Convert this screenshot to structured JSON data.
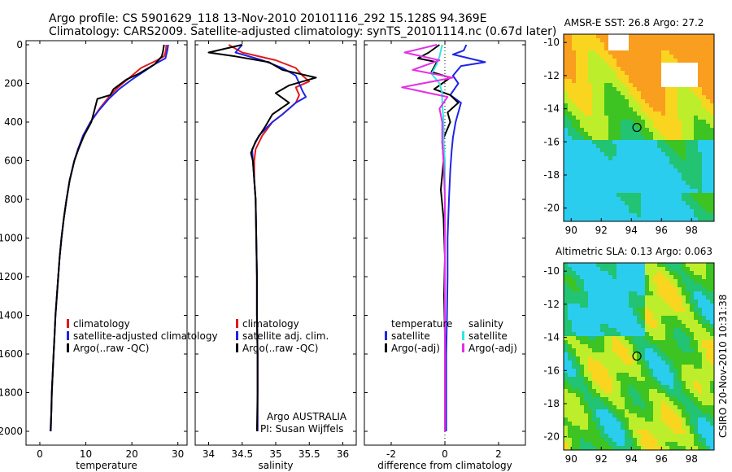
{
  "title_line1": "Argo profile: CS 5901629_118 13-Nov-2010 20101116_292 15.128S 94.369E",
  "title_line2": "Climatology: CARS2009. Satellite-adjusted climatology: synTS_20101114.nc (0.67d later)",
  "footer_text": "CSIRO 20-Nov-2010 10:31:38",
  "colors": {
    "climatology": "#e41a1c",
    "satellite": "#1f24e6",
    "argo": "#000000",
    "cyan": "#2ee6e6",
    "magenta": "#e62ee6"
  },
  "chart_data": [
    {
      "type": "line",
      "xlabel": "temperature",
      "ylabel": "",
      "xlim": [
        -3,
        32
      ],
      "ylim": [
        2050,
        0
      ],
      "xticks": [
        0,
        10,
        20,
        30
      ],
      "yticks": [
        0,
        200,
        400,
        600,
        800,
        1000,
        1200,
        1400,
        1600,
        1800,
        2000
      ],
      "legend": [
        "climatology",
        "satellite-adjusted climatology",
        "Argo(..raw -QC)"
      ],
      "series": [
        {
          "name": "climatology",
          "color": "climatology",
          "points": [
            [
              27.5,
              0
            ],
            [
              27.4,
              30
            ],
            [
              27.0,
              60
            ],
            [
              25.5,
              80
            ],
            [
              22.0,
              120
            ],
            [
              19.5,
              170
            ],
            [
              17.0,
              220
            ],
            [
              15.0,
              270
            ],
            [
              13.0,
              330
            ],
            [
              11.0,
              400
            ],
            [
              9.5,
              470
            ],
            [
              8.3,
              540
            ],
            [
              7.5,
              600
            ],
            [
              6.5,
              700
            ],
            [
              5.8,
              800
            ],
            [
              5.2,
              900
            ],
            [
              4.7,
              1000
            ],
            [
              4.3,
              1100
            ],
            [
              4.0,
              1200
            ],
            [
              3.7,
              1300
            ],
            [
              3.4,
              1400
            ],
            [
              3.2,
              1500
            ],
            [
              3.0,
              1600
            ],
            [
              2.8,
              1700
            ],
            [
              2.6,
              1800
            ],
            [
              2.5,
              1900
            ],
            [
              2.4,
              2000
            ]
          ]
        },
        {
          "name": "satellite-adjusted climatology",
          "color": "satellite",
          "points": [
            [
              27.9,
              0
            ],
            [
              27.7,
              30
            ],
            [
              27.3,
              70
            ],
            [
              25.0,
              100
            ],
            [
              22.5,
              140
            ],
            [
              20.0,
              180
            ],
            [
              17.2,
              230
            ],
            [
              15.0,
              280
            ],
            [
              12.8,
              340
            ],
            [
              11.0,
              400
            ],
            [
              9.4,
              470
            ],
            [
              8.3,
              540
            ],
            [
              7.5,
              600
            ],
            [
              6.5,
              700
            ],
            [
              5.8,
              800
            ],
            [
              5.2,
              900
            ],
            [
              4.7,
              1000
            ],
            [
              4.3,
              1100
            ],
            [
              4.0,
              1200
            ],
            [
              3.7,
              1300
            ],
            [
              3.4,
              1400
            ],
            [
              3.2,
              1500
            ],
            [
              3.0,
              1600
            ],
            [
              2.8,
              1700
            ],
            [
              2.6,
              1800
            ],
            [
              2.5,
              1900
            ],
            [
              2.4,
              2000
            ]
          ]
        },
        {
          "name": "Argo(..raw -QC)",
          "color": "argo",
          "points": [
            [
              27.0,
              0
            ],
            [
              26.8,
              30
            ],
            [
              26.5,
              60
            ],
            [
              25.0,
              100
            ],
            [
              21.5,
              150
            ],
            [
              18.8,
              180
            ],
            [
              16.0,
              230
            ],
            [
              15.3,
              260
            ],
            [
              12.5,
              280
            ],
            [
              11.2,
              400
            ],
            [
              9.6,
              470
            ],
            [
              8.4,
              540
            ],
            [
              7.5,
              600
            ],
            [
              6.5,
              700
            ],
            [
              5.8,
              800
            ],
            [
              5.2,
              900
            ],
            [
              4.7,
              1000
            ],
            [
              4.3,
              1100
            ],
            [
              4.0,
              1200
            ],
            [
              3.7,
              1300
            ],
            [
              3.4,
              1400
            ],
            [
              3.2,
              1500
            ],
            [
              3.0,
              1600
            ],
            [
              2.8,
              1700
            ],
            [
              2.6,
              1800
            ],
            [
              2.5,
              1900
            ],
            [
              2.3,
              2000
            ]
          ]
        }
      ]
    },
    {
      "type": "line",
      "xlabel": "salinity",
      "ylabel": "",
      "xlim": [
        33.8,
        36.2
      ],
      "ylim": [
        2050,
        0
      ],
      "xticks": [
        34,
        34.5,
        35,
        35.5,
        36
      ],
      "yticks": [],
      "legend": [
        "climatology",
        "satellite adj. clim.",
        "Argo(..raw -QC)"
      ],
      "notes": [
        "Argo AUSTRALIA",
        "PI: Susan Wijffels"
      ],
      "series": [
        {
          "name": "climatology",
          "color": "climatology",
          "points": [
            [
              34.3,
              0
            ],
            [
              34.5,
              40
            ],
            [
              35.0,
              80
            ],
            [
              35.3,
              120
            ],
            [
              35.4,
              160
            ],
            [
              35.5,
              190
            ],
            [
              35.3,
              220
            ],
            [
              35.35,
              260
            ],
            [
              35.3,
              300
            ],
            [
              35.1,
              360
            ],
            [
              34.95,
              400
            ],
            [
              34.8,
              470
            ],
            [
              34.7,
              540
            ],
            [
              34.68,
              600
            ],
            [
              34.68,
              700
            ],
            [
              34.7,
              800
            ],
            [
              34.71,
              1000
            ],
            [
              34.72,
              1200
            ],
            [
              34.72,
              1400
            ],
            [
              34.73,
              1600
            ],
            [
              34.73,
              1800
            ],
            [
              34.73,
              2000
            ]
          ]
        },
        {
          "name": "satellite adj. clim.",
          "color": "satellite",
          "points": [
            [
              34.5,
              0
            ],
            [
              34.4,
              40
            ],
            [
              34.8,
              80
            ],
            [
              35.1,
              120
            ],
            [
              35.3,
              160
            ],
            [
              35.35,
              200
            ],
            [
              35.4,
              240
            ],
            [
              35.45,
              270
            ],
            [
              35.3,
              300
            ],
            [
              35.1,
              360
            ],
            [
              34.95,
              400
            ],
            [
              34.75,
              470
            ],
            [
              34.65,
              540
            ],
            [
              34.66,
              600
            ],
            [
              34.68,
              700
            ],
            [
              34.7,
              800
            ],
            [
              34.71,
              1000
            ],
            [
              34.72,
              1200
            ],
            [
              34.72,
              1400
            ],
            [
              34.73,
              1600
            ],
            [
              34.73,
              1800
            ],
            [
              34.73,
              2000
            ]
          ]
        },
        {
          "name": "Argo(..raw -QC)",
          "color": "argo",
          "points": [
            [
              34.5,
              0
            ],
            [
              34.0,
              40
            ],
            [
              34.4,
              60
            ],
            [
              34.9,
              90
            ],
            [
              35.1,
              130
            ],
            [
              35.6,
              170
            ],
            [
              35.2,
              210
            ],
            [
              35.0,
              250
            ],
            [
              35.2,
              300
            ],
            [
              34.95,
              360
            ],
            [
              34.85,
              420
            ],
            [
              34.7,
              500
            ],
            [
              34.63,
              560
            ],
            [
              34.66,
              600
            ],
            [
              34.68,
              700
            ],
            [
              34.7,
              800
            ],
            [
              34.71,
              1000
            ],
            [
              34.72,
              1200
            ],
            [
              34.72,
              1400
            ],
            [
              34.73,
              1600
            ],
            [
              34.73,
              1800
            ],
            [
              34.72,
              2000
            ]
          ]
        }
      ]
    },
    {
      "type": "line",
      "xlabel": "difference from climatology",
      "ylabel": "",
      "xlim": [
        -3,
        3
      ],
      "ylim": [
        2050,
        0
      ],
      "xticks": [
        -2,
        0,
        2
      ],
      "yticks": [],
      "legend_left_header": "temperature",
      "legend_left": [
        "satellite",
        "Argo(-adj)"
      ],
      "legend_right_header": "salinity",
      "legend_right": [
        "satellite",
        "Argo(-adj)"
      ],
      "series": [
        {
          "name": "temperature satellite",
          "color": "satellite",
          "points": [
            [
              0.8,
              0
            ],
            [
              0.7,
              30
            ],
            [
              0.3,
              50
            ],
            [
              1.5,
              90
            ],
            [
              0.6,
              110
            ],
            [
              0.3,
              160
            ],
            [
              0.5,
              200
            ],
            [
              0.2,
              260
            ],
            [
              0.6,
              300
            ],
            [
              0.5,
              350
            ],
            [
              0.4,
              400
            ],
            [
              0.3,
              480
            ],
            [
              0.25,
              550
            ],
            [
              0.2,
              650
            ],
            [
              0.15,
              800
            ],
            [
              0.1,
              1000
            ],
            [
              0.1,
              1200
            ],
            [
              0.08,
              1400
            ],
            [
              0.05,
              1600
            ],
            [
              0.05,
              1800
            ],
            [
              0.05,
              2000
            ]
          ]
        },
        {
          "name": "temperature Argo(-adj)",
          "color": "argo",
          "points": [
            [
              -0.2,
              0
            ],
            [
              -0.6,
              40
            ],
            [
              -1.0,
              70
            ],
            [
              -0.3,
              90
            ],
            [
              -0.5,
              140
            ],
            [
              0.2,
              170
            ],
            [
              -0.4,
              230
            ],
            [
              0.2,
              260
            ],
            [
              0.5,
              300
            ],
            [
              0.1,
              350
            ],
            [
              0.2,
              400
            ],
            [
              -0.1,
              500
            ],
            [
              -0.05,
              600
            ],
            [
              -0.15,
              750
            ],
            [
              -0.05,
              900
            ],
            [
              0.0,
              1100
            ],
            [
              -0.03,
              1300
            ],
            [
              0.0,
              1500
            ],
            [
              0.0,
              1700
            ],
            [
              0.0,
              1900
            ],
            [
              0.0,
              2000
            ]
          ]
        },
        {
          "name": "salinity satellite",
          "color": "cyan",
          "points": [
            [
              -0.1,
              0
            ],
            [
              -0.2,
              60
            ],
            [
              -0.3,
              100
            ],
            [
              -0.5,
              150
            ],
            [
              -0.2,
              200
            ],
            [
              -0.1,
              250
            ],
            [
              -0.1,
              300
            ],
            [
              -0.05,
              400
            ],
            [
              -0.05,
              500
            ],
            [
              0.0,
              600
            ],
            [
              0.0,
              800
            ],
            [
              0.0,
              1000
            ],
            [
              0.0,
              1200
            ],
            [
              0.0,
              1400
            ],
            [
              0.0,
              1600
            ],
            [
              0.0,
              1800
            ],
            [
              0.0,
              2000
            ]
          ]
        },
        {
          "name": "salinity Argo(-adj)",
          "color": "magenta",
          "points": [
            [
              -0.3,
              0
            ],
            [
              -1.5,
              40
            ],
            [
              -0.2,
              80
            ],
            [
              -1.2,
              130
            ],
            [
              0.3,
              170
            ],
            [
              -1.6,
              220
            ],
            [
              0.1,
              270
            ],
            [
              -0.2,
              330
            ],
            [
              -0.1,
              400
            ],
            [
              -0.1,
              500
            ],
            [
              -0.05,
              600
            ],
            [
              0.0,
              800
            ],
            [
              0.0,
              1000
            ],
            [
              0.0,
              1200
            ],
            [
              0.0,
              1400
            ],
            [
              0.0,
              1600
            ],
            [
              0.0,
              1800
            ],
            [
              0.0,
              2000
            ]
          ]
        }
      ]
    },
    {
      "type": "heatmap",
      "title": "AMSR-E SST: 26.8 Argo: 27.2",
      "xlim": [
        89.5,
        99.5
      ],
      "ylim": [
        -20.8,
        -9.5
      ],
      "xticks": [
        90,
        92,
        94,
        96,
        98
      ],
      "yticks": [
        -10,
        -12,
        -14,
        -16,
        -18,
        -20
      ],
      "marker": [
        94.369,
        -15.128
      ]
    },
    {
      "type": "heatmap",
      "title": "Altimetric SLA: 0.13 Argo: 0.063",
      "xlim": [
        89.5,
        99.5
      ],
      "ylim": [
        -20.8,
        -9.5
      ],
      "xticks": [
        90,
        92,
        94,
        96,
        98
      ],
      "yticks": [
        -10,
        -12,
        -14,
        -16,
        -18,
        -20
      ],
      "marker": [
        94.369,
        -15.128
      ]
    }
  ]
}
